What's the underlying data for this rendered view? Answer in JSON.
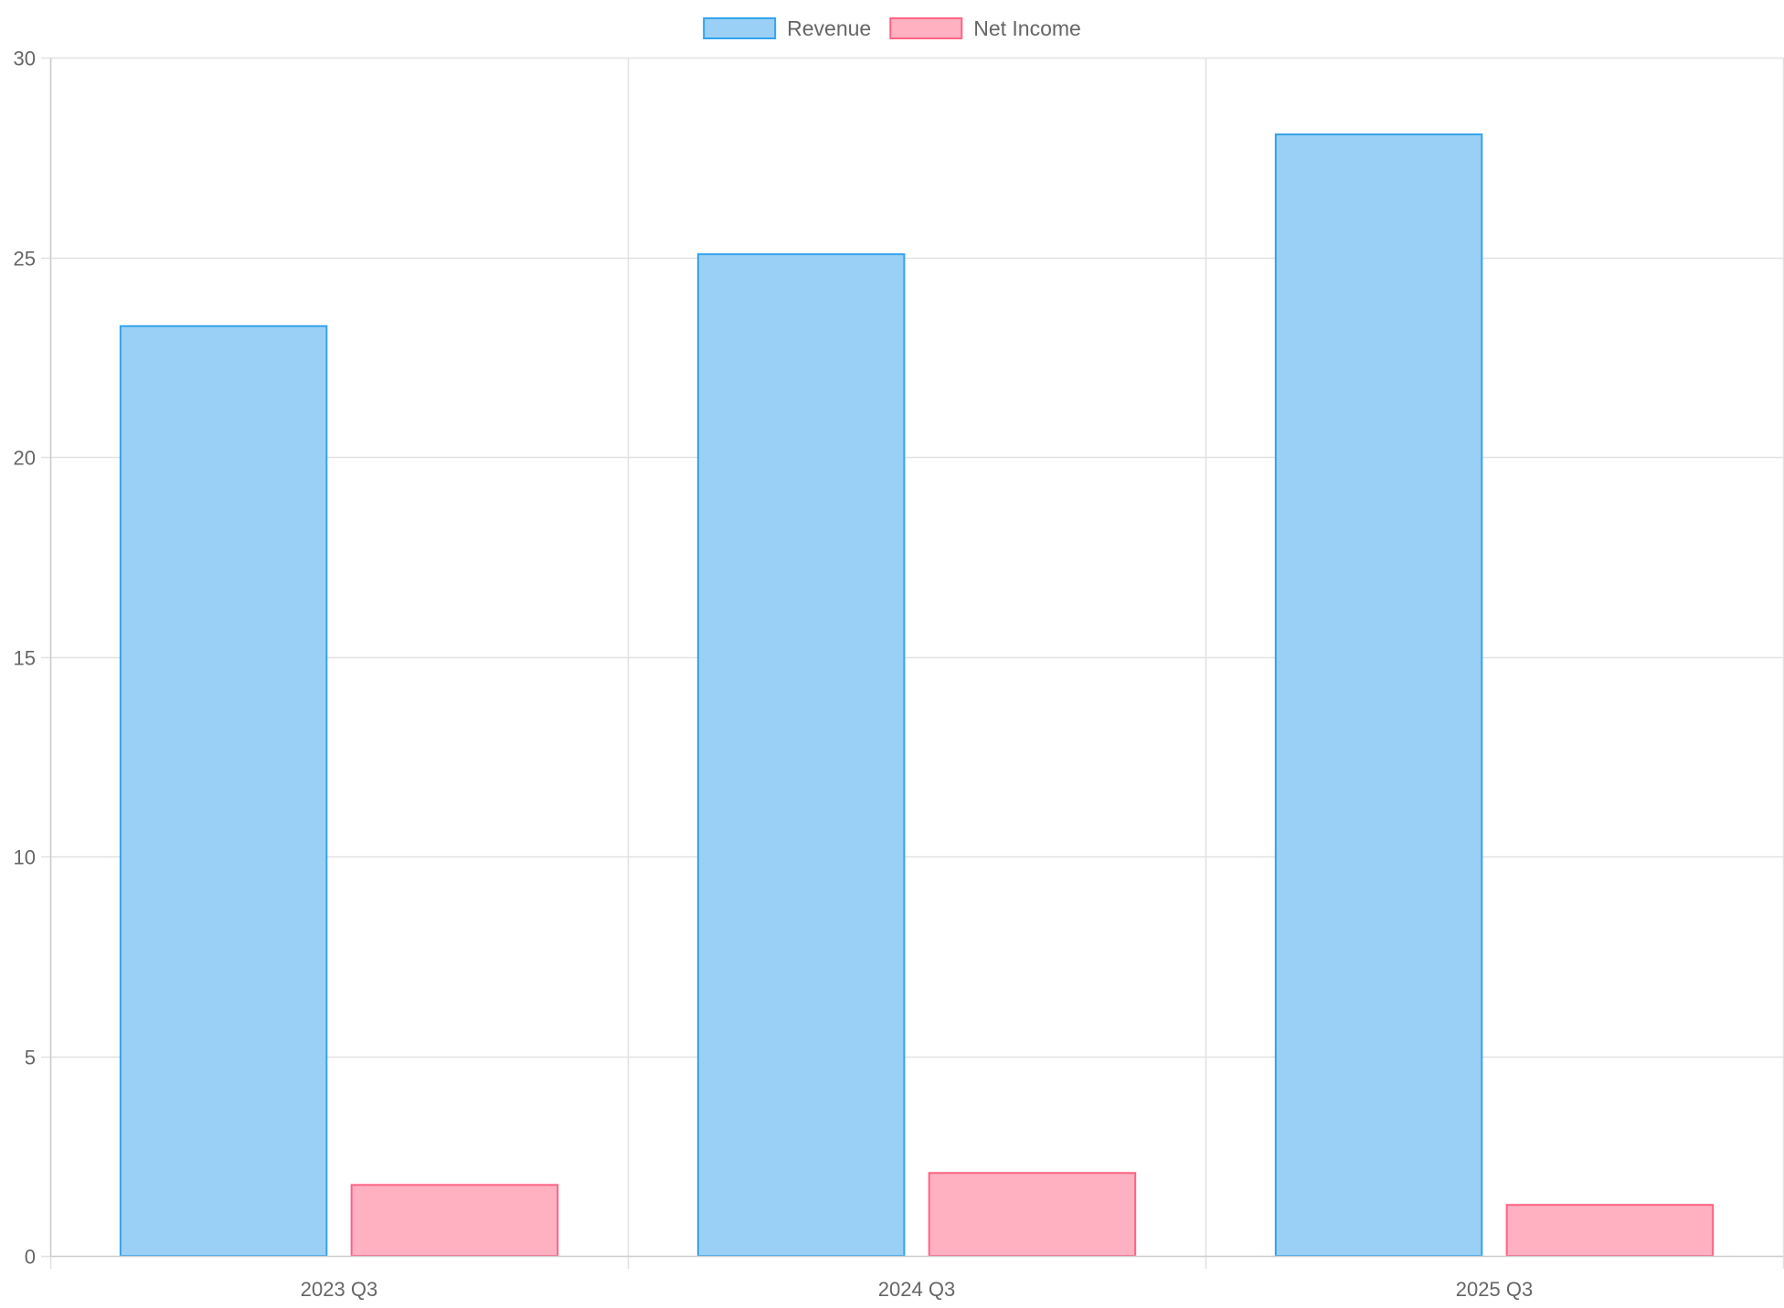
{
  "chart_data": {
    "type": "bar",
    "categories": [
      "2023 Q3",
      "2024 Q3",
      "2025 Q3"
    ],
    "series": [
      {
        "name": "Revenue",
        "values": [
          23.3,
          25.1,
          28.1
        ],
        "fill": "#9ad0f5",
        "stroke": "#36a2eb"
      },
      {
        "name": "Net Income",
        "values": [
          1.8,
          2.1,
          1.3
        ],
        "fill": "#ffb1c1",
        "stroke": "#ff6384"
      }
    ],
    "ylim": [
      0,
      30
    ],
    "yticks": [
      0,
      5,
      10,
      15,
      20,
      25,
      30
    ],
    "grid": true,
    "legend_position": "top-center",
    "colors": {
      "grid": "#e1e1e1",
      "axis": "#cccccc",
      "text": "#666666"
    }
  }
}
